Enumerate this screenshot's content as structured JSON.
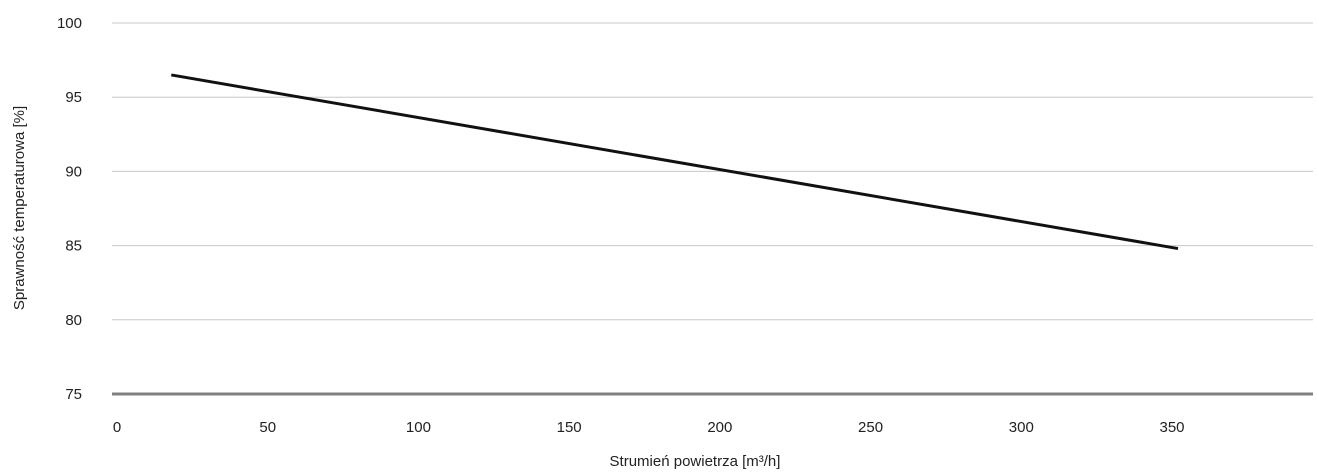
{
  "chart_data": {
    "type": "line",
    "title": "",
    "xlabel": "Strumień powietrza [m³/h]",
    "ylabel": "Sprawność temperaturowa [%]",
    "xlim": [
      0,
      395
    ],
    "ylim": [
      75,
      100
    ],
    "x_ticks": [
      "0",
      "50",
      "100",
      "150",
      "200",
      "250",
      "300",
      "350"
    ],
    "y_ticks": [
      "75",
      "80",
      "85",
      "90",
      "95",
      "100"
    ],
    "grid": true,
    "legend": "none",
    "series": [
      {
        "color": "#111111",
        "x": [
          18,
          352
        ],
        "y": [
          96.5,
          84.8
        ]
      }
    ],
    "colors": {
      "gridline": "#c8c8c8",
      "baseline": "#808080",
      "line": "#111111",
      "text": "#222222"
    }
  }
}
